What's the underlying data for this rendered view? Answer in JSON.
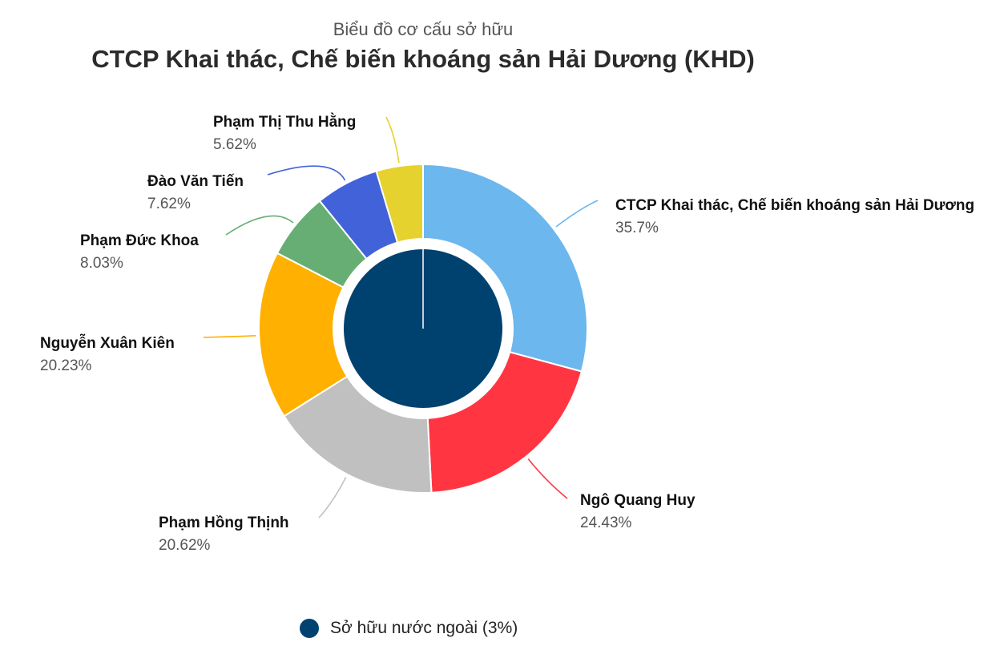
{
  "header": {
    "subtitle": "Biểu đồ cơ cấu sở hữu",
    "title": "CTCP Khai thác, Chế biến khoáng sản Hải Dương (KHD)"
  },
  "legend": {
    "label": "Sở hữu nước ngoài (3%)",
    "color": "#00426F"
  },
  "chart_data": {
    "type": "pie",
    "title": "CTCP Khai thác, Chế biến khoáng sản Hải Dương (KHD)",
    "subtitle": "Biểu đồ cơ cấu sở hữu",
    "outer_ring": [
      {
        "name": "CTCP Khai thác, Chế biến khoáng sản Hải Dương",
        "label": "35.7%",
        "value": 35.7,
        "color": "#6BB7EE"
      },
      {
        "name": "Ngô Quang Huy",
        "label": "24.43%",
        "value": 24.43,
        "color": "#FF3642"
      },
      {
        "name": "Phạm Hồng Thịnh",
        "label": "20.62%",
        "value": 20.62,
        "color": "#C0C0C0"
      },
      {
        "name": "Nguyễn Xuân Kiên",
        "label": "20.23%",
        "value": 20.23,
        "color": "#FFB000"
      },
      {
        "name": "Phạm Đức Khoa",
        "label": "8.03%",
        "value": 8.03,
        "color": "#66AE74"
      },
      {
        "name": "Đào Văn Tiến",
        "label": "7.62%",
        "value": 7.62,
        "color": "#4262D9"
      },
      {
        "name": "Phạm Thị Thu Hằng",
        "label": "5.62%",
        "value": 5.62,
        "color": "#E6D22E"
      }
    ],
    "inner_pie": [
      {
        "name": "Sở hữu nước ngoài (3%)",
        "value": 100,
        "color": "#00426F"
      }
    ],
    "legend": "bottom"
  }
}
